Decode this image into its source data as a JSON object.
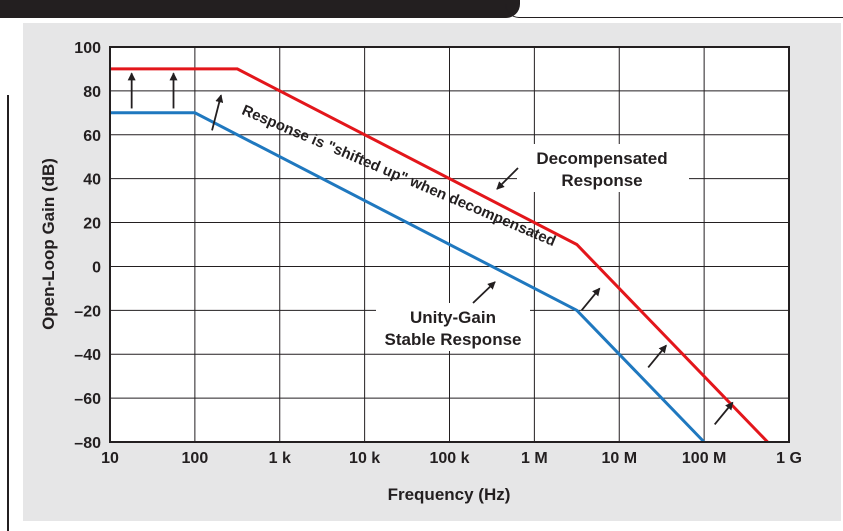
{
  "chart_data": {
    "type": "line",
    "xscale": "log",
    "xlim": [
      10,
      1000000000
    ],
    "ylim": [
      -80,
      100
    ],
    "grid": true,
    "xlabel": "Frequency (Hz)",
    "ylabel": "Open-Loop Gain (dB)",
    "x_ticks": [
      {
        "value": 10,
        "label": "10"
      },
      {
        "value": 100,
        "label": "100"
      },
      {
        "value": 1000,
        "label": "1 k"
      },
      {
        "value": 10000,
        "label": "10 k"
      },
      {
        "value": 100000,
        "label": "100 k"
      },
      {
        "value": 1000000,
        "label": "1 M"
      },
      {
        "value": 10000000,
        "label": "10 M"
      },
      {
        "value": 100000000,
        "label": "100 M"
      },
      {
        "value": 1000000000,
        "label": "1 G"
      }
    ],
    "y_ticks": [
      {
        "value": 100,
        "label": "100"
      },
      {
        "value": 80,
        "label": "80"
      },
      {
        "value": 60,
        "label": "60"
      },
      {
        "value": 40,
        "label": "40"
      },
      {
        "value": 20,
        "label": "20"
      },
      {
        "value": 0,
        "label": "0"
      },
      {
        "value": -20,
        "label": "–20"
      },
      {
        "value": -40,
        "label": "–40"
      },
      {
        "value": -60,
        "label": "–60"
      },
      {
        "value": -80,
        "label": "–80"
      }
    ],
    "series": [
      {
        "key": "decompensated",
        "color": "#e3161b",
        "points": [
          [
            10,
            90
          ],
          [
            316,
            90
          ],
          [
            3160000,
            10
          ],
          [
            560000000,
            -80
          ]
        ]
      },
      {
        "key": "unity_gain",
        "color": "#1f78bf",
        "points": [
          [
            10,
            70
          ],
          [
            100,
            70
          ],
          [
            3160000,
            -20
          ],
          [
            100000000,
            -80
          ]
        ]
      }
    ],
    "arrows": [
      {
        "x": 18,
        "y0": 72,
        "y1": 88
      },
      {
        "x": 56,
        "y0": 72,
        "y1": 88
      },
      {
        "x": 180,
        "y0": 62,
        "y1": 78
      },
      {
        "x": 4600000,
        "y0": -20,
        "y1": -10
      },
      {
        "x": 28000000,
        "y0": -46,
        "y1": -36
      },
      {
        "x": 170000000,
        "y0": -72,
        "y1": -62
      }
    ],
    "annotations": {
      "shift_note": "Response is \"shifted up\" when decompensated",
      "decomp_line1": "Decompensated",
      "decomp_line2": "Response",
      "unity_line1": "Unity-Gain",
      "unity_line2": "Stable Response"
    }
  }
}
